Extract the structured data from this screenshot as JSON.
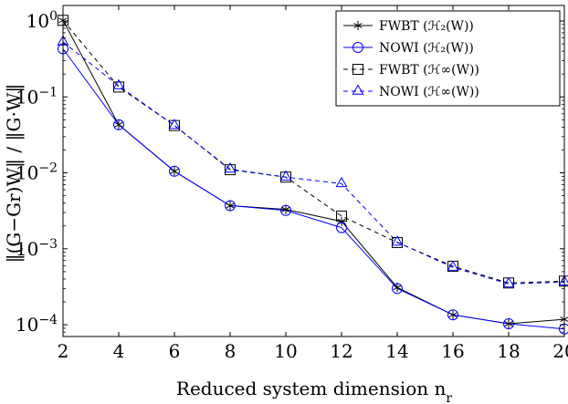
{
  "chart_data": {
    "type": "line",
    "x": [
      2,
      4,
      6,
      8,
      10,
      12,
      14,
      16,
      18,
      20
    ],
    "x_ticks": [
      "2",
      "4",
      "6",
      "8",
      "10",
      "12",
      "14",
      "16",
      "18",
      "20"
    ],
    "xlim": [
      2,
      20
    ],
    "y_scale": "log",
    "ylim": [
      7e-05,
      1.6
    ],
    "y_ticks": [
      {
        "value": 1,
        "base": "10",
        "exp": "0"
      },
      {
        "value": 0.1,
        "base": "10",
        "exp": "−1"
      },
      {
        "value": 0.01,
        "base": "10",
        "exp": "−2"
      },
      {
        "value": 0.001,
        "base": "10",
        "exp": "−3"
      },
      {
        "value": 0.0001,
        "base": "10",
        "exp": "−4"
      }
    ],
    "xlabel": "Reduced system dimension n",
    "xlabel_sub": "r",
    "ylabel": "‖(G−Gr)W‖ / ‖G·W‖",
    "grid": false,
    "legend_position": "top-right",
    "series": [
      {
        "name": "FWBT (ℋ₂(W))",
        "color": "#000000",
        "dash": "solid",
        "marker": "star",
        "values": [
          1.02,
          0.043,
          0.0105,
          0.0037,
          0.0033,
          0.0023,
          0.00031,
          0.000135,
          0.000103,
          0.000118
        ]
      },
      {
        "name": "NOWI (ℋ₂(W))",
        "color": "#0000ff",
        "dash": "solid",
        "marker": "circle",
        "values": [
          0.43,
          0.043,
          0.0105,
          0.0037,
          0.0032,
          0.0019,
          0.0003,
          0.000135,
          0.000103,
          8.8e-05
        ]
      },
      {
        "name": "FWBT (ℋ∞(W))",
        "color": "#000000",
        "dash": "dashed",
        "marker": "square",
        "values": [
          1.02,
          0.135,
          0.042,
          0.011,
          0.0088,
          0.0027,
          0.00121,
          0.00059,
          0.000355,
          0.000375
        ]
      },
      {
        "name": "NOWI (ℋ∞(W))",
        "color": "#0000ff",
        "dash": "dashed",
        "marker": "triangle",
        "values": [
          0.53,
          0.14,
          0.042,
          0.0112,
          0.0088,
          0.0072,
          0.00122,
          0.00057,
          0.000345,
          0.000365
        ]
      }
    ]
  }
}
